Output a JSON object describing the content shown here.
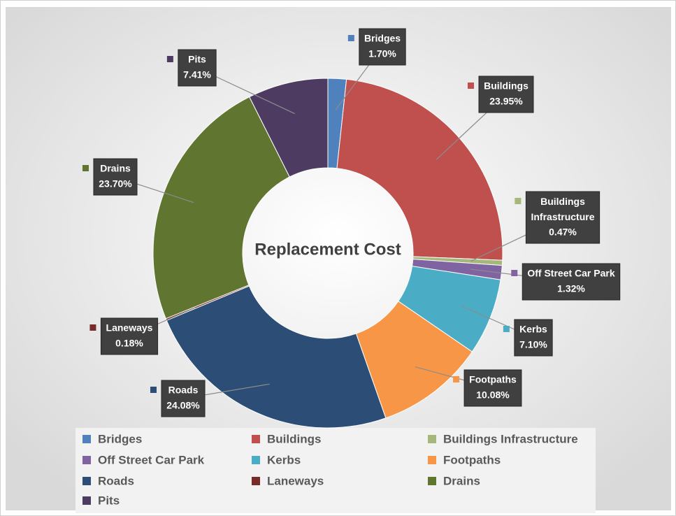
{
  "chart_data": {
    "type": "donut",
    "title": "Replacement Cost",
    "categories": [
      "Bridges",
      "Buildings",
      "Buildings Infrastructure",
      "Off Street Car Park",
      "Kerbs",
      "Footpaths",
      "Roads",
      "Laneways",
      "Drains",
      "Pits"
    ],
    "values": [
      1.7,
      23.95,
      0.47,
      1.32,
      7.1,
      10.08,
      24.08,
      0.18,
      23.7,
      7.41
    ],
    "value_labels": [
      "1.70%",
      "23.95%",
      "0.47%",
      "1.32%",
      "7.10%",
      "10.08%",
      "24.08%",
      "0.18%",
      "23.70%",
      "7.41%"
    ],
    "colors": [
      "#4f81bd",
      "#c0504d",
      "#a5b77a",
      "#8064a2",
      "#4bacc6",
      "#f79646",
      "#2c4d75",
      "#772c2a",
      "#5f7530",
      "#4d3b62"
    ],
    "legend": "bottom"
  }
}
